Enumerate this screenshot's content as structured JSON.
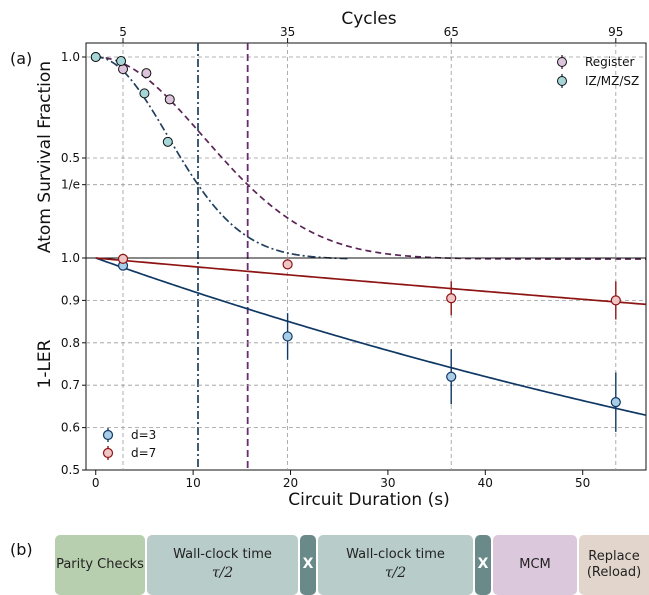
{
  "figure": {
    "panel_a_label": "(a)",
    "panel_b_label": "(b)"
  },
  "colors": {
    "register": "#5a2456",
    "register_marker": "#dcc4dc",
    "iz": "#22405e",
    "iz_marker": "#a6d6d8",
    "d3": "#0f3864",
    "d3_marker": "#a9cde6",
    "d7": "#8e1414",
    "d7_marker": "#efc6c6",
    "vline_iz": "#2a4a66",
    "vline_reg": "#6a2a6e",
    "grid": "#9a9a9a"
  },
  "chart_data": [
    {
      "type": "scatter",
      "panel": "(a) top",
      "title": "",
      "ylabel": "Atom Survival Fraction",
      "top_axis_label": "Cycles",
      "top_ticks": [
        {
          "x": 2.8,
          "label": "5"
        },
        {
          "x": 19.7,
          "label": "35"
        },
        {
          "x": 36.5,
          "label": "65"
        },
        {
          "x": 53.4,
          "label": "95"
        }
      ],
      "xlim": [
        -1,
        56.5
      ],
      "ylim": [
        0,
        1.05
      ],
      "yticks": [
        {
          "v": 1.0,
          "label": "1.0"
        },
        {
          "v": 0.5,
          "label": "0.5"
        },
        {
          "v": 0.3679,
          "label": "1/e"
        }
      ],
      "grid": true,
      "legend": "top-right",
      "series": [
        {
          "name": "Register",
          "key": "register",
          "marker_key": "register_marker",
          "line": "dashed",
          "x": [
            0,
            2.8,
            5.2,
            7.6
          ],
          "y": [
            1.0,
            0.94,
            0.92,
            0.79
          ],
          "curve": {
            "type": "gaussian",
            "T": 15.6,
            "x_to": 56.5
          }
        },
        {
          "name": "IZ/MZ/SZ",
          "key": "iz",
          "marker_key": "iz_marker",
          "line": "dashdot",
          "x": [
            0,
            2.6,
            5.0,
            7.4
          ],
          "y": [
            1.0,
            0.98,
            0.82,
            0.58
          ],
          "curve": {
            "type": "gaussian",
            "T": 10.5,
            "x_to": 26
          }
        }
      ],
      "vlines": [
        {
          "x": 10.5,
          "style": "dashdot",
          "key": "vline_iz"
        },
        {
          "x": 15.6,
          "style": "dashed",
          "key": "vline_reg"
        }
      ]
    },
    {
      "type": "scatter",
      "panel": "(a) bottom",
      "title": "",
      "xlabel": "Circuit Duration (s)",
      "ylabel": "1-LER",
      "xlim": [
        -1,
        56.5
      ],
      "ylim": [
        0.5,
        1.0
      ],
      "xticks": [
        0,
        10,
        20,
        30,
        40,
        50
      ],
      "yticks": [
        {
          "v": 1.0,
          "label": "1.0"
        },
        {
          "v": 0.9,
          "label": "0.9"
        },
        {
          "v": 0.8,
          "label": "0.8"
        },
        {
          "v": 0.7,
          "label": "0.7"
        },
        {
          "v": 0.6,
          "label": "0.6"
        },
        {
          "v": 0.5,
          "label": "0.5"
        }
      ],
      "grid": true,
      "legend": "bottom-left",
      "series": [
        {
          "name": "d=3",
          "key": "d3",
          "marker_key": "d3_marker",
          "x": [
            2.8,
            19.7,
            36.5,
            53.4
          ],
          "y": [
            0.982,
            0.815,
            0.72,
            0.66
          ],
          "err": [
            0.008,
            0.055,
            0.065,
            0.07
          ],
          "curve": {
            "type": "exp",
            "a": 0.0082,
            "x_to": 56.5
          }
        },
        {
          "name": "d=7",
          "key": "d7",
          "marker_key": "d7_marker",
          "x": [
            2.8,
            19.7,
            36.5,
            53.4
          ],
          "y": [
            0.998,
            0.985,
            0.905,
            0.9
          ],
          "err": [
            0.004,
            0.012,
            0.04,
            0.045
          ],
          "curve": {
            "type": "exp",
            "a": 0.00205,
            "x_to": 56.5
          }
        }
      ]
    }
  ],
  "sequence": {
    "blocks": [
      {
        "name": "seq-parity-checks",
        "label": "Parity Checks",
        "sub": "",
        "color": "#b8cfaf",
        "x": 55,
        "w": 90
      },
      {
        "name": "seq-wall-clock-1",
        "label": "Wall-clock time",
        "sub": "τ/2",
        "color": "#b8ccca",
        "x": 147,
        "w": 151
      },
      {
        "name": "seq-x-1",
        "label": "X",
        "sub": "",
        "color": "#6a8a8a",
        "x": 300,
        "w": 16,
        "x_block": true
      },
      {
        "name": "seq-wall-clock-2",
        "label": "Wall-clock time",
        "sub": "τ/2",
        "color": "#b8ccca",
        "x": 318,
        "w": 155
      },
      {
        "name": "seq-x-2",
        "label": "X",
        "sub": "",
        "color": "#6a8a8a",
        "x": 475,
        "w": 16,
        "x_block": true
      },
      {
        "name": "seq-mcm",
        "label": "MCM",
        "sub": "",
        "color": "#dcc8dc",
        "x": 493,
        "w": 84
      },
      {
        "name": "seq-replace",
        "label": "Replace",
        "sub": "(Reload)",
        "color": "#e2d6cc",
        "x": 579,
        "w": 90
      }
    ]
  }
}
